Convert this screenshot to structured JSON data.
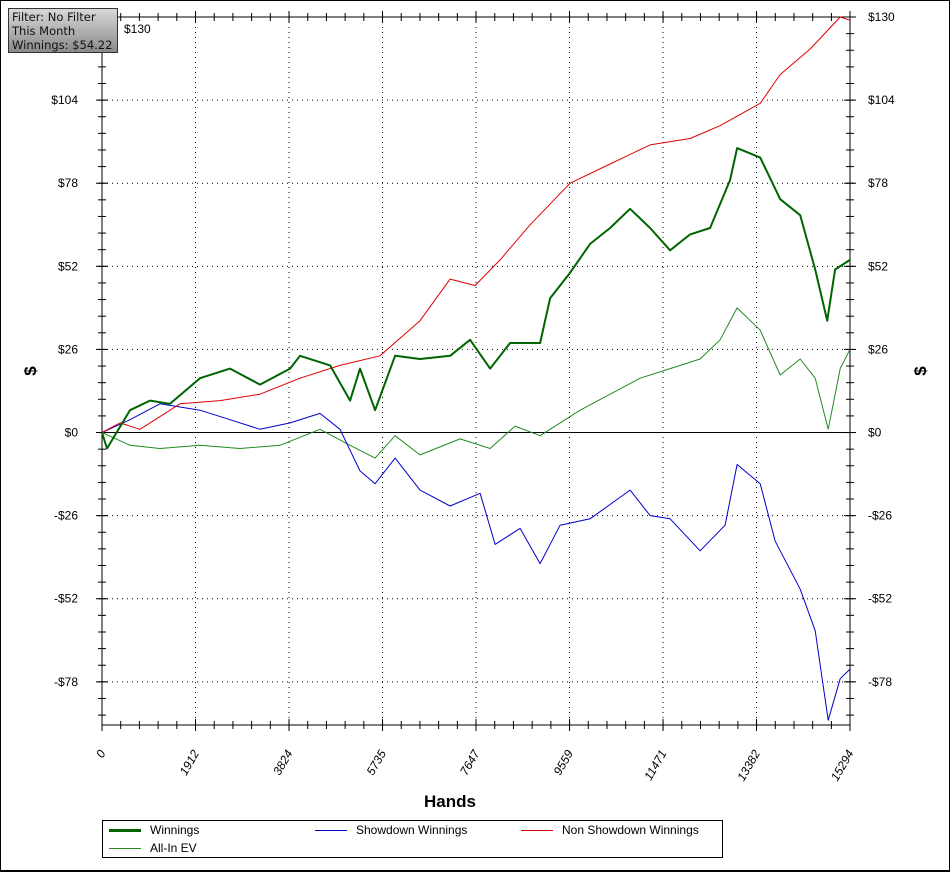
{
  "info_box": {
    "filter": "Filter: No Filter",
    "period": "This Month",
    "winnings": "Winnings: $54.22"
  },
  "chart_data": {
    "type": "line",
    "title": "",
    "xlabel": "Hands",
    "ylabel": "$",
    "xlim": [
      0,
      15294
    ],
    "ylim": [
      -91.5,
      130
    ],
    "x_ticks": [
      0,
      1912,
      3824,
      5735,
      7647,
      9559,
      11471,
      13382,
      15294
    ],
    "x_tick_labels": [
      "0",
      "1912",
      "3824",
      "5735",
      "7647",
      "9559",
      "11471",
      "13382",
      "15294"
    ],
    "y_ticks": [
      130,
      104,
      78,
      52,
      26,
      0,
      -26,
      -52,
      -78
    ],
    "y_tick_labels": [
      "$130",
      "$104",
      "$78",
      "$52",
      "$26",
      "$0",
      "-$26",
      "-$52",
      "-$78"
    ],
    "grid": true,
    "legend_position": "bottom",
    "series": [
      {
        "name": "Winnings",
        "color": "#006400",
        "width": 2,
        "x": [
          0,
          102,
          573,
          982,
          1391,
          2004,
          2618,
          3231,
          3845,
          4049,
          4663,
          5072,
          5276,
          5583,
          5992,
          6503,
          7117,
          7526,
          7935,
          8344,
          8957,
          9162,
          9571,
          9980,
          10389,
          10798,
          11207,
          11616,
          12025,
          12434,
          12843,
          12986,
          13457,
          13866,
          14275,
          14582,
          14828,
          14990,
          15294
        ],
        "y": [
          0,
          -5,
          7,
          10,
          9,
          17,
          20,
          15,
          20,
          24,
          21,
          10,
          20,
          7,
          24,
          23,
          24,
          29,
          20,
          28,
          28,
          42,
          50,
          59,
          64,
          70,
          64,
          57,
          62,
          64,
          79,
          89,
          86,
          73,
          68,
          51,
          35,
          51,
          54
        ]
      },
      {
        "name": "Showdown Winnings",
        "color": "#0000cc",
        "width": 1,
        "x": [
          0,
          573,
          1186,
          2004,
          2618,
          3231,
          3845,
          4458,
          4867,
          5276,
          5583,
          5992,
          6503,
          7117,
          7730,
          8037,
          8548,
          8957,
          9366,
          9980,
          10798,
          11207,
          11616,
          12229,
          12741,
          12986,
          13457,
          13764,
          14275,
          14582,
          14848,
          15093,
          15294
        ],
        "y": [
          0,
          4,
          9,
          7,
          4,
          1,
          3,
          6,
          1,
          -12,
          -16,
          -8,
          -18,
          -23,
          -19,
          -35,
          -30,
          -41,
          -29,
          -27,
          -18,
          -26,
          -27,
          -37,
          -29,
          -10,
          -16,
          -34,
          -49,
          -62,
          -90,
          -77,
          -74
        ]
      },
      {
        "name": "Non Showdown Winnings",
        "color": "#e00000",
        "width": 1,
        "x": [
          0,
          368,
          777,
          1595,
          2413,
          3231,
          4049,
          4867,
          5685,
          6503,
          7117,
          7628,
          8139,
          8753,
          9571,
          10389,
          11207,
          12025,
          12638,
          13457,
          13866,
          14480,
          15093,
          15294
        ],
        "y": [
          0,
          3,
          1,
          9,
          10,
          12,
          17,
          21,
          24,
          35,
          48,
          46,
          54,
          65,
          78,
          84,
          90,
          92,
          96,
          103,
          112,
          120,
          130,
          129
        ]
      },
      {
        "name": "All-In EV",
        "color": "#228b22",
        "width": 1,
        "x": [
          0,
          573,
          1186,
          2004,
          2822,
          3640,
          4458,
          5072,
          5583,
          5992,
          6503,
          7321,
          7935,
          8446,
          8957,
          9775,
          10389,
          11002,
          11616,
          12229,
          12638,
          12986,
          13457,
          13866,
          14275,
          14582,
          14848,
          15093,
          15294
        ],
        "y": [
          0,
          -4,
          -5,
          -4,
          -5,
          -4,
          1,
          -4,
          -8,
          -1,
          -7,
          -2,
          -5,
          2,
          -1,
          7,
          12,
          17,
          20,
          23,
          29,
          39,
          32,
          18,
          23,
          17,
          1,
          20,
          26
        ]
      }
    ]
  }
}
